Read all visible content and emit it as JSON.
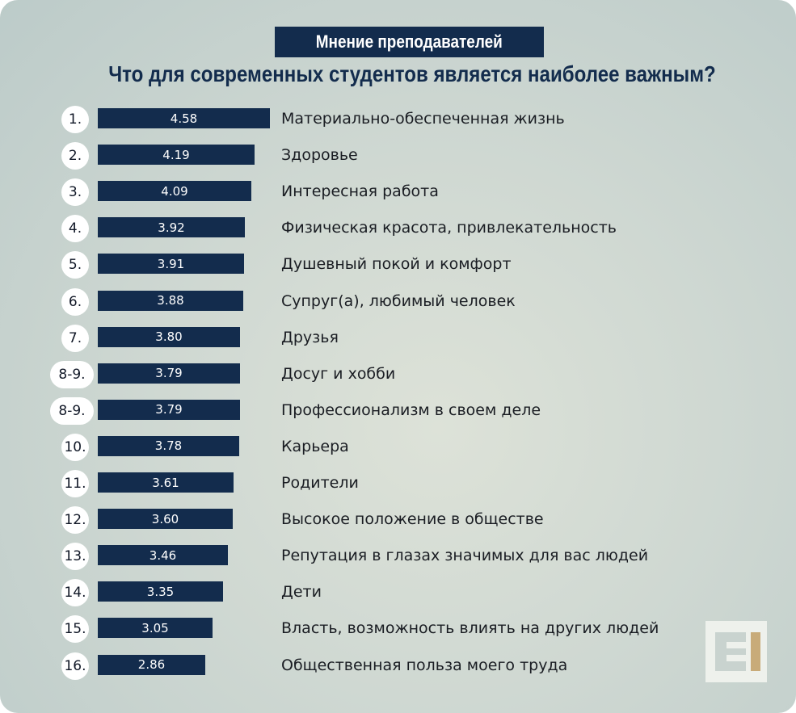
{
  "title": "Мнение преподавателей",
  "subtitle": "Что для современных студентов является наиболее важным?",
  "colors": {
    "bar": "#132c4d",
    "rank_bg": "#ffffff",
    "logo_accent": "#c8ab79"
  },
  "logo_icon": "edu-logo-icon",
  "chart_data": {
    "type": "bar",
    "orientation": "horizontal",
    "title": "Мнение преподавателей",
    "subtitle": "Что для современных студентов является наиболее важным?",
    "rows": [
      {
        "rank": "1.",
        "value": 4.58,
        "value_label": "4.58",
        "category": "Материально-обеспеченная жизнь"
      },
      {
        "rank": "2.",
        "value": 4.19,
        "value_label": "4.19",
        "category": "Здоровье"
      },
      {
        "rank": "3.",
        "value": 4.09,
        "value_label": "4.09",
        "category": "Интересная работа"
      },
      {
        "rank": "4.",
        "value": 3.92,
        "value_label": "3.92",
        "category": "Физическая красота, привлекательность"
      },
      {
        "rank": "5.",
        "value": 3.91,
        "value_label": "3.91",
        "category": "Душевный покой и комфорт"
      },
      {
        "rank": "6.",
        "value": 3.88,
        "value_label": "3.88",
        "category": "Супруг(а), любимый человек"
      },
      {
        "rank": "7.",
        "value": 3.8,
        "value_label": "3.80",
        "category": "Друзья"
      },
      {
        "rank": "8-9.",
        "value": 3.79,
        "value_label": "3.79",
        "category": "Досуг и хобби"
      },
      {
        "rank": "8-9.",
        "value": 3.79,
        "value_label": "3.79",
        "category": "Профессионализм в своем деле"
      },
      {
        "rank": "10.",
        "value": 3.78,
        "value_label": "3.78",
        "category": "Карьера"
      },
      {
        "rank": "11.",
        "value": 3.61,
        "value_label": "3.61",
        "category": "Родители"
      },
      {
        "rank": "12.",
        "value": 3.6,
        "value_label": "3.60",
        "category": "Высокое положение в обществе"
      },
      {
        "rank": "13.",
        "value": 3.46,
        "value_label": "3.46",
        "category": "Репутация в глазах значимых для вас людей"
      },
      {
        "rank": "14.",
        "value": 3.35,
        "value_label": "3.35",
        "category": "Дети"
      },
      {
        "rank": "15.",
        "value": 3.05,
        "value_label": "3.05",
        "category": "Власть, возможность влиять на других людей"
      },
      {
        "rank": "16.",
        "value": 2.86,
        "value_label": "2.86",
        "category": "Общественная польза моего труда"
      }
    ]
  }
}
